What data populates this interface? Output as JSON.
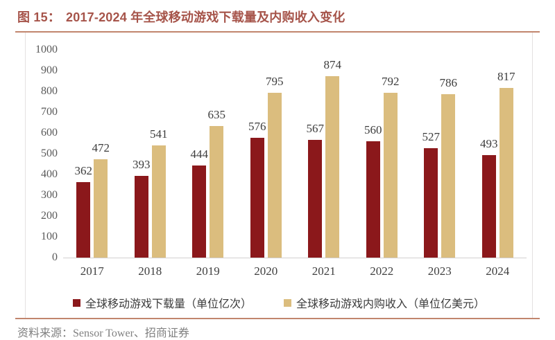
{
  "figure": {
    "label": "图 15：",
    "title": "2017-2024 年全球移动游戏下载量及内购收入变化"
  },
  "chart_data": {
    "type": "bar",
    "title": "2017-2024 年全球移动游戏下载量及内购收入变化",
    "categories": [
      "2017",
      "2018",
      "2019",
      "2020",
      "2021",
      "2022",
      "2023",
      "2024"
    ],
    "series": [
      {
        "name": "全球移动游戏下载量（单位亿次）",
        "color": "#8B181B",
        "values": [
          362,
          393,
          444,
          576,
          567,
          560,
          527,
          493
        ]
      },
      {
        "name": "全球移动游戏内购收入（单位亿美元）",
        "color": "#DBBD7E",
        "values": [
          472,
          541,
          635,
          795,
          874,
          792,
          786,
          817
        ]
      }
    ],
    "xlabel": "",
    "ylabel": "",
    "ylim": [
      0,
      1000
    ],
    "ytick_step": 100,
    "grid": false,
    "legend_position": "bottom",
    "value_labels": true
  },
  "source": {
    "text": "资料来源：Sensor Tower、招商证券"
  },
  "colors": {
    "title_red": "#A6544A",
    "rule_tan": "#C1856D",
    "bar_download": "#8B181B",
    "bar_revenue": "#DBBD7E",
    "axis_text": "#595959",
    "label_text": "#3C3C3C",
    "source_text": "#808080"
  }
}
